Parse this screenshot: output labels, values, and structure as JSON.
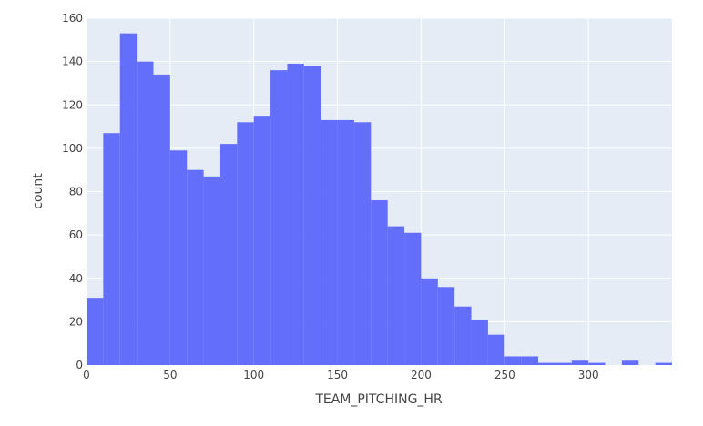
{
  "chart_data": {
    "type": "bar",
    "subtype": "histogram",
    "xlabel": "TEAM_PITCHING_HR",
    "ylabel": "count",
    "bin_width": 10,
    "bins_start": [
      0,
      10,
      20,
      30,
      40,
      50,
      60,
      70,
      80,
      90,
      100,
      110,
      120,
      130,
      140,
      150,
      160,
      170,
      180,
      190,
      200,
      210,
      220,
      230,
      240,
      250,
      260,
      270,
      280,
      290,
      300,
      310,
      320,
      330,
      340
    ],
    "counts": [
      31,
      107,
      153,
      140,
      134,
      99,
      90,
      87,
      102,
      112,
      115,
      136,
      139,
      138,
      113,
      113,
      112,
      76,
      64,
      61,
      40,
      36,
      27,
      21,
      14,
      4,
      4,
      1,
      1,
      2,
      1,
      0,
      2,
      0,
      1
    ],
    "xlim": [
      0,
      350
    ],
    "ylim": [
      0,
      160
    ],
    "x_ticks": [
      "0",
      "50",
      "100",
      "150",
      "200",
      "250",
      "300"
    ],
    "y_ticks": [
      "0",
      "20",
      "40",
      "60",
      "80",
      "100",
      "120",
      "140",
      "160"
    ],
    "bar_color": "#636efa",
    "plot_bg": "#e5ecf6",
    "grid": true
  }
}
